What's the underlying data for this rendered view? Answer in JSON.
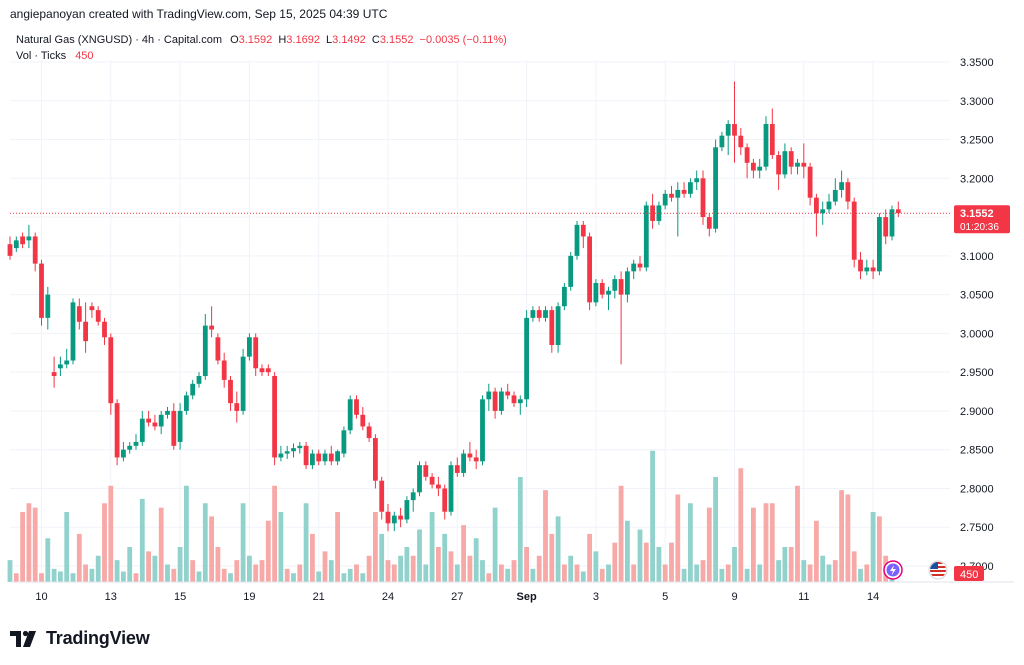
{
  "header": {
    "attribution": "angiepanoyan created with TradingView.com, Sep 15, 2025 04:39 UTC"
  },
  "legend": {
    "symbol": "Natural Gas (XNGUSD) · 4h · Capital.com",
    "o_label": "O",
    "o_value": "3.1592",
    "h_label": "H",
    "h_value": "3.1692",
    "l_label": "L",
    "l_value": "3.1492",
    "c_label": "C",
    "c_value": "3.1552",
    "change": "−0.0035 (−0.11%)",
    "vol_label": "Vol · Ticks",
    "vol_value": "450"
  },
  "price_label": {
    "price": "3.1552",
    "countdown": "01:20:36"
  },
  "volume_label": "450",
  "footer": {
    "brand": "TradingView"
  },
  "colors": {
    "up": "#089981",
    "down": "#f23645",
    "up_vol": "#92d2cc",
    "down_vol": "#f7a9a7",
    "grid": "#f0f3fa"
  },
  "chart_data": {
    "type": "candlestick",
    "title": "Natural Gas (XNGUSD) · 4h · Capital.com",
    "y_axis": {
      "side": "right",
      "ticks": [
        "3.3500",
        "3.3000",
        "3.2500",
        "3.2000",
        "3.1500",
        "3.1000",
        "3.0500",
        "3.0000",
        "2.9500",
        "2.9000",
        "2.8500",
        "2.8000",
        "2.7500",
        "2.7000"
      ],
      "range": [
        2.68,
        3.37
      ]
    },
    "x_axis": {
      "ticks": [
        {
          "label": "10",
          "index": 5
        },
        {
          "label": "13",
          "index": 16
        },
        {
          "label": "15",
          "index": 27
        },
        {
          "label": "19",
          "index": 38
        },
        {
          "label": "21",
          "index": 49
        },
        {
          "label": "24",
          "index": 60
        },
        {
          "label": "27",
          "index": 71
        },
        {
          "label": "Sep",
          "index": 82
        },
        {
          "label": "3",
          "index": 93
        },
        {
          "label": "5",
          "index": 104
        },
        {
          "label": "9",
          "index": 115
        },
        {
          "label": "11",
          "index": 126
        },
        {
          "label": "14",
          "index": 137
        }
      ]
    },
    "candles": [
      [
        3.115,
        3.125,
        3.095,
        3.1
      ],
      [
        3.11,
        3.125,
        3.105,
        3.12
      ],
      [
        3.125,
        3.13,
        3.11,
        3.115
      ],
      [
        3.12,
        3.14,
        3.11,
        3.125
      ],
      [
        3.125,
        3.13,
        3.08,
        3.09
      ],
      [
        3.09,
        3.095,
        3.01,
        3.02
      ],
      [
        3.02,
        3.06,
        3.005,
        3.05
      ],
      [
        2.95,
        2.97,
        2.93,
        2.945
      ],
      [
        2.955,
        2.97,
        2.945,
        2.96
      ],
      [
        2.96,
        2.98,
        2.955,
        2.965
      ],
      [
        2.965,
        3.045,
        2.96,
        3.04
      ],
      [
        3.035,
        3.045,
        3.005,
        3.015
      ],
      [
        3.015,
        3.04,
        2.975,
        2.99
      ],
      [
        3.035,
        3.04,
        3.02,
        3.03
      ],
      [
        3.03,
        3.035,
        3.01,
        3.015
      ],
      [
        3.015,
        3.02,
        2.985,
        2.995
      ],
      [
        2.995,
        3.0,
        2.895,
        2.91
      ],
      [
        2.91,
        2.915,
        2.83,
        2.84
      ],
      [
        2.84,
        2.86,
        2.835,
        2.85
      ],
      [
        2.85,
        2.86,
        2.845,
        2.855
      ],
      [
        2.855,
        2.87,
        2.85,
        2.86
      ],
      [
        2.86,
        2.9,
        2.855,
        2.89
      ],
      [
        2.89,
        2.9,
        2.88,
        2.885
      ],
      [
        2.885,
        2.895,
        2.875,
        2.88
      ],
      [
        2.88,
        2.9,
        2.87,
        2.895
      ],
      [
        2.895,
        2.905,
        2.89,
        2.9
      ],
      [
        2.9,
        2.91,
        2.85,
        2.855
      ],
      [
        2.86,
        2.91,
        2.85,
        2.9
      ],
      [
        2.9,
        2.925,
        2.895,
        2.92
      ],
      [
        2.92,
        2.94,
        2.915,
        2.935
      ],
      [
        2.935,
        2.95,
        2.93,
        2.945
      ],
      [
        2.945,
        3.025,
        2.94,
        3.01
      ],
      [
        3.01,
        3.035,
        2.995,
        3.005
      ],
      [
        2.995,
        3.0,
        2.96,
        2.965
      ],
      [
        2.965,
        2.975,
        2.93,
        2.94
      ],
      [
        2.94,
        2.945,
        2.9,
        2.91
      ],
      [
        2.91,
        2.925,
        2.885,
        2.9
      ],
      [
        2.9,
        2.98,
        2.895,
        2.97
      ],
      [
        2.97,
        3.0,
        2.965,
        2.995
      ],
      [
        2.995,
        3.0,
        2.945,
        2.955
      ],
      [
        2.955,
        2.96,
        2.945,
        2.95
      ],
      [
        2.955,
        2.96,
        2.945,
        2.95
      ],
      [
        2.945,
        2.95,
        2.83,
        2.84
      ],
      [
        2.84,
        2.855,
        2.835,
        2.845
      ],
      [
        2.845,
        2.855,
        2.838,
        2.848
      ],
      [
        2.848,
        2.858,
        2.84,
        2.852
      ],
      [
        2.852,
        2.86,
        2.845,
        2.855
      ],
      [
        2.855,
        2.86,
        2.825,
        2.83
      ],
      [
        2.83,
        2.85,
        2.825,
        2.845
      ],
      [
        2.845,
        2.85,
        2.83,
        2.835
      ],
      [
        2.835,
        2.85,
        2.83,
        2.845
      ],
      [
        2.845,
        2.855,
        2.83,
        2.835
      ],
      [
        2.835,
        2.85,
        2.83,
        2.848
      ],
      [
        2.845,
        2.88,
        2.84,
        2.875
      ],
      [
        2.875,
        2.92,
        2.87,
        2.915
      ],
      [
        2.915,
        2.92,
        2.89,
        2.895
      ],
      [
        2.895,
        2.905,
        2.875,
        2.88
      ],
      [
        2.88,
        2.885,
        2.86,
        2.865
      ],
      [
        2.865,
        2.87,
        2.8,
        2.81
      ],
      [
        2.81,
        2.815,
        2.76,
        2.77
      ],
      [
        2.77,
        2.78,
        2.745,
        2.755
      ],
      [
        2.755,
        2.77,
        2.745,
        2.765
      ],
      [
        2.765,
        2.775,
        2.75,
        2.76
      ],
      [
        2.76,
        2.79,
        2.755,
        2.785
      ],
      [
        2.785,
        2.8,
        2.77,
        2.795
      ],
      [
        2.795,
        2.835,
        2.79,
        2.83
      ],
      [
        2.83,
        2.835,
        2.81,
        2.815
      ],
      [
        2.815,
        2.82,
        2.8,
        2.805
      ],
      [
        2.805,
        2.815,
        2.79,
        2.8
      ],
      [
        2.8,
        2.805,
        2.76,
        2.77
      ],
      [
        2.77,
        2.835,
        2.765,
        2.83
      ],
      [
        2.83,
        2.84,
        2.815,
        2.82
      ],
      [
        2.82,
        2.85,
        2.815,
        2.845
      ],
      [
        2.845,
        2.86,
        2.835,
        2.84
      ],
      [
        2.84,
        2.85,
        2.825,
        2.835
      ],
      [
        2.835,
        2.92,
        2.83,
        2.915
      ],
      [
        2.915,
        2.935,
        2.9,
        2.925
      ],
      [
        2.925,
        2.93,
        2.89,
        2.9
      ],
      [
        2.9,
        2.93,
        2.895,
        2.925
      ],
      [
        2.925,
        2.935,
        2.915,
        2.92
      ],
      [
        2.92,
        2.925,
        2.905,
        2.91
      ],
      [
        2.91,
        2.92,
        2.895,
        2.915
      ],
      [
        2.915,
        3.03,
        2.905,
        3.02
      ],
      [
        3.02,
        3.035,
        3.015,
        3.03
      ],
      [
        3.03,
        3.035,
        3.015,
        3.02
      ],
      [
        3.02,
        3.035,
        3.015,
        3.03
      ],
      [
        3.03,
        3.035,
        2.975,
        2.985
      ],
      [
        2.985,
        3.04,
        2.975,
        3.035
      ],
      [
        3.035,
        3.065,
        3.03,
        3.06
      ],
      [
        3.06,
        3.105,
        3.055,
        3.1
      ],
      [
        3.1,
        3.145,
        3.095,
        3.14
      ],
      [
        3.14,
        3.145,
        3.11,
        3.125
      ],
      [
        3.125,
        3.13,
        3.03,
        3.04
      ],
      [
        3.04,
        3.07,
        3.035,
        3.065
      ],
      [
        3.065,
        3.07,
        3.045,
        3.05
      ],
      [
        3.05,
        3.06,
        3.03,
        3.055
      ],
      [
        3.055,
        3.075,
        3.045,
        3.07
      ],
      [
        3.07,
        3.08,
        2.96,
        3.05
      ],
      [
        3.05,
        3.085,
        3.04,
        3.08
      ],
      [
        3.08,
        3.095,
        3.07,
        3.09
      ],
      [
        3.09,
        3.1,
        3.08,
        3.085
      ],
      [
        3.085,
        3.17,
        3.08,
        3.165
      ],
      [
        3.165,
        3.18,
        3.135,
        3.145
      ],
      [
        3.145,
        3.17,
        3.14,
        3.165
      ],
      [
        3.165,
        3.185,
        3.16,
        3.18
      ],
      [
        3.18,
        3.19,
        3.17,
        3.175
      ],
      [
        3.175,
        3.195,
        3.125,
        3.185
      ],
      [
        3.185,
        3.195,
        3.175,
        3.18
      ],
      [
        3.18,
        3.2,
        3.175,
        3.195
      ],
      [
        3.195,
        3.21,
        3.185,
        3.2
      ],
      [
        3.2,
        3.21,
        3.14,
        3.15
      ],
      [
        3.15,
        3.155,
        3.125,
        3.135
      ],
      [
        3.135,
        3.25,
        3.13,
        3.24
      ],
      [
        3.24,
        3.26,
        3.235,
        3.255
      ],
      [
        3.255,
        3.275,
        3.23,
        3.27
      ],
      [
        3.27,
        3.325,
        3.22,
        3.255
      ],
      [
        3.255,
        3.265,
        3.23,
        3.24
      ],
      [
        3.24,
        3.245,
        3.2,
        3.22
      ],
      [
        3.22,
        3.225,
        3.2,
        3.21
      ],
      [
        3.21,
        3.225,
        3.2,
        3.215
      ],
      [
        3.215,
        3.28,
        3.21,
        3.27
      ],
      [
        3.27,
        3.29,
        3.225,
        3.23
      ],
      [
        3.23,
        3.235,
        3.185,
        3.205
      ],
      [
        3.205,
        3.245,
        3.2,
        3.235
      ],
      [
        3.235,
        3.24,
        3.205,
        3.215
      ],
      [
        3.215,
        3.225,
        3.205,
        3.22
      ],
      [
        3.22,
        3.245,
        3.2,
        3.215
      ],
      [
        3.215,
        3.22,
        3.165,
        3.175
      ],
      [
        3.175,
        3.18,
        3.125,
        3.155
      ],
      [
        3.155,
        3.17,
        3.14,
        3.16
      ],
      [
        3.16,
        3.18,
        3.155,
        3.17
      ],
      [
        3.17,
        3.2,
        3.165,
        3.185
      ],
      [
        3.185,
        3.21,
        3.175,
        3.195
      ],
      [
        3.195,
        3.2,
        3.16,
        3.17
      ],
      [
        3.17,
        3.175,
        3.085,
        3.095
      ],
      [
        3.095,
        3.105,
        3.07,
        3.08
      ],
      [
        3.08,
        3.095,
        3.075,
        3.085
      ],
      [
        3.085,
        3.095,
        3.07,
        3.08
      ],
      [
        3.08,
        3.155,
        3.075,
        3.15
      ],
      [
        3.15,
        3.16,
        3.115,
        3.125
      ],
      [
        3.125,
        3.165,
        3.12,
        3.16
      ],
      [
        3.16,
        3.17,
        3.15,
        3.155
      ]
    ],
    "volume": [
      [
        25,
        1
      ],
      [
        10,
        0
      ],
      [
        80,
        0
      ],
      [
        90,
        0
      ],
      [
        85,
        0
      ],
      [
        10,
        0
      ],
      [
        50,
        1
      ],
      [
        15,
        1
      ],
      [
        12,
        1
      ],
      [
        80,
        1
      ],
      [
        10,
        1
      ],
      [
        55,
        0
      ],
      [
        20,
        0
      ],
      [
        15,
        1
      ],
      [
        30,
        1
      ],
      [
        90,
        0
      ],
      [
        110,
        0
      ],
      [
        25,
        1
      ],
      [
        12,
        1
      ],
      [
        40,
        1
      ],
      [
        10,
        0
      ],
      [
        95,
        1
      ],
      [
        35,
        0
      ],
      [
        30,
        1
      ],
      [
        85,
        0
      ],
      [
        20,
        1
      ],
      [
        15,
        0
      ],
      [
        40,
        1
      ],
      [
        110,
        1
      ],
      [
        25,
        0
      ],
      [
        12,
        1
      ],
      [
        90,
        1
      ],
      [
        75,
        0
      ],
      [
        40,
        0
      ],
      [
        15,
        0
      ],
      [
        10,
        1
      ],
      [
        25,
        0
      ],
      [
        90,
        1
      ],
      [
        30,
        1
      ],
      [
        20,
        0
      ],
      [
        25,
        0
      ],
      [
        70,
        0
      ],
      [
        110,
        0
      ],
      [
        80,
        1
      ],
      [
        15,
        0
      ],
      [
        10,
        1
      ],
      [
        20,
        0
      ],
      [
        90,
        1
      ],
      [
        55,
        0
      ],
      [
        12,
        1
      ],
      [
        35,
        0
      ],
      [
        25,
        1
      ],
      [
        80,
        0
      ],
      [
        10,
        1
      ],
      [
        15,
        1
      ],
      [
        20,
        0
      ],
      [
        10,
        1
      ],
      [
        30,
        0
      ],
      [
        80,
        0
      ],
      [
        55,
        1
      ],
      [
        25,
        0
      ],
      [
        20,
        0
      ],
      [
        30,
        1
      ],
      [
        40,
        1
      ],
      [
        30,
        0
      ],
      [
        60,
        1
      ],
      [
        20,
        1
      ],
      [
        80,
        1
      ],
      [
        40,
        0
      ],
      [
        55,
        1
      ],
      [
        35,
        0
      ],
      [
        20,
        1
      ],
      [
        65,
        0
      ],
      [
        30,
        0
      ],
      [
        50,
        1
      ],
      [
        25,
        1
      ],
      [
        10,
        0
      ],
      [
        85,
        1
      ],
      [
        20,
        0
      ],
      [
        15,
        1
      ],
      [
        25,
        0
      ],
      [
        120,
        1
      ],
      [
        40,
        0
      ],
      [
        15,
        1
      ],
      [
        30,
        0
      ],
      [
        105,
        0
      ],
      [
        55,
        0
      ],
      [
        75,
        1
      ],
      [
        20,
        0
      ],
      [
        30,
        1
      ],
      [
        20,
        0
      ],
      [
        12,
        1
      ],
      [
        55,
        0
      ],
      [
        35,
        1
      ],
      [
        15,
        0
      ],
      [
        20,
        1
      ],
      [
        45,
        0
      ],
      [
        110,
        0
      ],
      [
        70,
        1
      ],
      [
        20,
        0
      ],
      [
        60,
        1
      ],
      [
        45,
        0
      ],
      [
        150,
        1
      ],
      [
        40,
        1
      ],
      [
        20,
        0
      ],
      [
        45,
        0
      ],
      [
        100,
        0
      ],
      [
        15,
        1
      ],
      [
        90,
        1
      ],
      [
        20,
        1
      ],
      [
        25,
        0
      ],
      [
        85,
        0
      ],
      [
        120,
        1
      ],
      [
        15,
        1
      ],
      [
        20,
        0
      ],
      [
        40,
        1
      ],
      [
        130,
        0
      ],
      [
        15,
        1
      ],
      [
        85,
        0
      ],
      [
        20,
        1
      ],
      [
        90,
        0
      ],
      [
        90,
        0
      ],
      [
        25,
        1
      ],
      [
        40,
        1
      ],
      [
        40,
        0
      ],
      [
        110,
        0
      ],
      [
        25,
        1
      ],
      [
        20,
        0
      ],
      [
        70,
        0
      ],
      [
        30,
        1
      ],
      [
        20,
        1
      ],
      [
        25,
        0
      ],
      [
        105,
        0
      ],
      [
        100,
        0
      ],
      [
        35,
        0
      ],
      [
        15,
        1
      ],
      [
        20,
        0
      ],
      [
        80,
        1
      ],
      [
        75,
        0
      ],
      [
        30,
        0
      ],
      [
        15,
        1
      ]
    ]
  }
}
